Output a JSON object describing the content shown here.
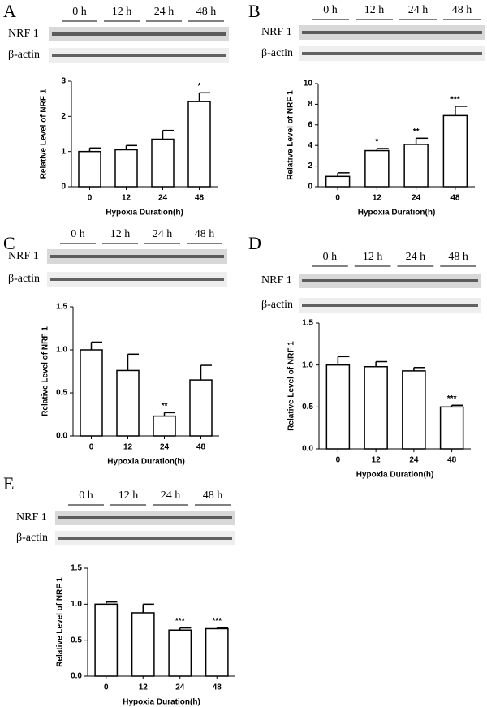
{
  "chart_data": [
    {
      "type": "bar",
      "panel": "A",
      "lanes": [
        "0 h",
        "12 h",
        "24 h",
        "48 h"
      ],
      "bands": [
        "NRF 1",
        "β-actin"
      ],
      "ylabel": "Relative Level of NRF 1",
      "xlabel": "Hypoxia Duration(h)",
      "categories": [
        "0",
        "12",
        "24",
        "48"
      ],
      "values": [
        1.0,
        1.05,
        1.35,
        2.42
      ],
      "errors": [
        0.1,
        0.12,
        0.25,
        0.25
      ],
      "annotations": [
        null,
        null,
        null,
        "*"
      ],
      "color": "#ffffff",
      "ylim": [
        0,
        3
      ],
      "yticks": [
        0,
        1,
        2,
        3
      ]
    },
    {
      "type": "bar",
      "panel": "B",
      "lanes": [
        "0 h",
        "12 h",
        "24 h",
        "48 h"
      ],
      "bands": [
        "NRF 1",
        "β-actin"
      ],
      "ylabel": "Relative Level of NRF 1",
      "xlabel": "Hypoxia Duration(h)",
      "categories": [
        "0",
        "12",
        "24",
        "48"
      ],
      "values": [
        1.0,
        3.5,
        4.1,
        6.9
      ],
      "errors": [
        0.35,
        0.2,
        0.6,
        0.9
      ],
      "annotations": [
        null,
        "*",
        "**",
        "***"
      ],
      "color": "#ffffff",
      "ylim": [
        0,
        10
      ],
      "yticks": [
        0,
        2,
        4,
        6,
        8,
        10
      ]
    },
    {
      "type": "bar",
      "panel": "C",
      "lanes": [
        "0 h",
        "12 h",
        "24 h",
        "48 h"
      ],
      "bands": [
        "NRF 1",
        "β-actin"
      ],
      "ylabel": "Relative Level of NRF 1",
      "xlabel": "Hypoxia Duration(h)",
      "categories": [
        "0",
        "12",
        "24",
        "48"
      ],
      "values": [
        1.0,
        0.76,
        0.23,
        0.65
      ],
      "errors": [
        0.09,
        0.19,
        0.04,
        0.17
      ],
      "annotations": [
        null,
        null,
        "**",
        null
      ],
      "color": "#ffffff",
      "ylim": [
        0,
        1.5
      ],
      "yticks": [
        {
          "value": 0,
          "label": "0.0"
        },
        0.5,
        {
          "value": 1,
          "label": "1.0"
        },
        1.5
      ]
    },
    {
      "type": "bar",
      "panel": "D",
      "lanes": [
        "0 h",
        "12 h",
        "24 h",
        "48 h"
      ],
      "bands": [
        "NRF 1",
        "β-actin"
      ],
      "ylabel": "Relative Level of NRF 1",
      "xlabel": "Hypoxia Duration(h)",
      "categories": [
        "0",
        "12",
        "24",
        "48"
      ],
      "values": [
        1.0,
        0.98,
        0.93,
        0.5
      ],
      "errors": [
        0.1,
        0.06,
        0.04,
        0.02
      ],
      "annotations": [
        null,
        null,
        null,
        "***"
      ],
      "color": "#ffffff",
      "ylim": [
        0,
        1.5
      ],
      "yticks": [
        {
          "value": 0,
          "label": "0.0"
        },
        0.5,
        {
          "value": 1,
          "label": "1.0"
        },
        1.5
      ]
    },
    {
      "type": "bar",
      "panel": "E",
      "lanes": [
        "0 h",
        "12 h",
        "24 h",
        "48 h"
      ],
      "bands": [
        "NRF 1",
        "β-actin"
      ],
      "ylabel": "Relative Level of NRF 1",
      "xlabel": "Hypoxia Duration(h)",
      "categories": [
        "0",
        "12",
        "24",
        "48"
      ],
      "values": [
        1.0,
        0.88,
        0.64,
        0.66
      ],
      "errors": [
        0.03,
        0.12,
        0.03,
        0.01
      ],
      "annotations": [
        null,
        null,
        "***",
        "***"
      ],
      "color": "#ffffff",
      "ylim": [
        0,
        1.5
      ],
      "yticks": [
        {
          "value": 0,
          "label": "0.0"
        },
        0.5,
        {
          "value": 1,
          "label": "1.0"
        },
        1.5
      ]
    }
  ]
}
